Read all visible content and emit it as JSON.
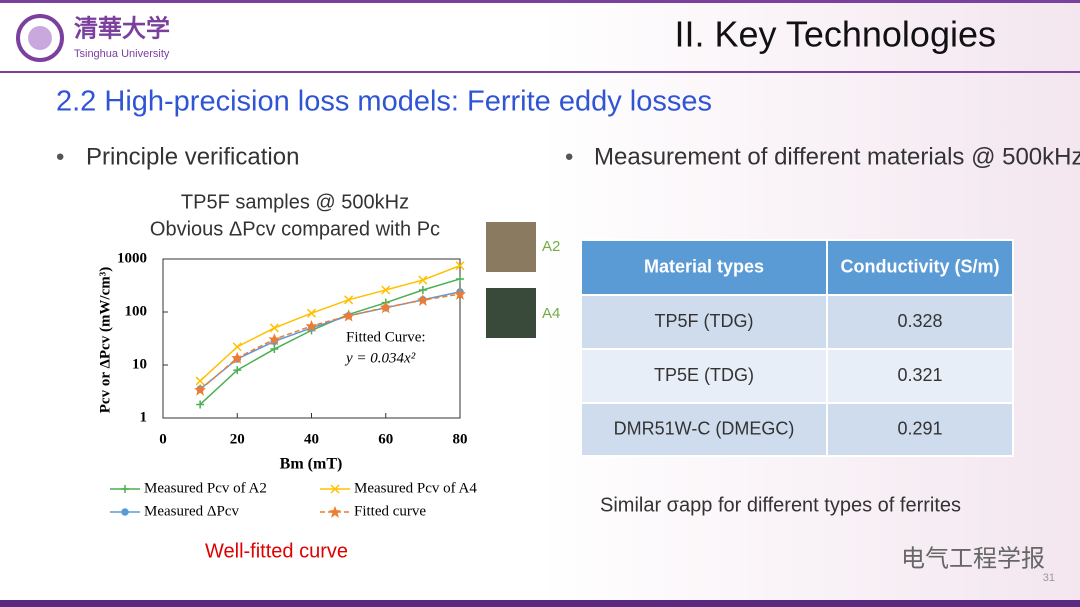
{
  "header": {
    "logo_cn": "清華大学",
    "logo_en": "Tsinghua University",
    "title": "II. Key Technologies"
  },
  "section": "2.2 High-precision loss models: Ferrite eddy losses",
  "left": {
    "bullet": "Principle verification",
    "caption": "Well-fitted curve"
  },
  "chart_data": {
    "type": "line",
    "title": [
      "TP5F samples @ 500kHz",
      "Obvious ΔPcv compared with Pc"
    ],
    "xlabel": "Bm (mT)",
    "ylabel": "Pcv or ΔPcv (mW/cm³)",
    "x": [
      10,
      20,
      30,
      40,
      50,
      60,
      70,
      80
    ],
    "series": [
      {
        "name": "Measured Pcv of A2",
        "color": "#4caf50",
        "marker": "plus",
        "values": [
          1.8,
          8,
          20,
          45,
          90,
          150,
          260,
          420
        ]
      },
      {
        "name": "Measured Pcv of A4",
        "color": "#ffc000",
        "marker": "x",
        "values": [
          5,
          22,
          50,
          95,
          170,
          260,
          400,
          750
        ]
      },
      {
        "name": "Measured ΔPcv",
        "color": "#5b9bd5",
        "marker": "circle",
        "values": [
          3.5,
          13,
          28,
          50,
          85,
          120,
          170,
          240
        ]
      },
      {
        "name": "Fitted curve",
        "color": "#ed7d31",
        "marker": "star",
        "dashed": true,
        "values": [
          3.4,
          13.6,
          30.6,
          54.4,
          85,
          122,
          167,
          218
        ]
      }
    ],
    "xlim": [
      0,
      80
    ],
    "xticks": [
      0,
      20,
      40,
      60,
      80
    ],
    "ylim": [
      1,
      1000
    ],
    "yticks": [
      1,
      10,
      100,
      1000
    ],
    "log_y": true,
    "annotation": [
      "Fitted Curve:",
      "y = 0.034x²"
    ],
    "sample_labels": [
      "A2",
      "A4"
    ]
  },
  "right": {
    "bullet": "Measurement of different materials @ 500kHz",
    "note": "Similar σapp for different types of ferrites"
  },
  "table": {
    "columns": [
      "Material types",
      "Conductivity (S/m)"
    ],
    "rows": [
      [
        "TP5F (TDG)",
        "0.328"
      ],
      [
        "TP5E (TDG)",
        "0.321"
      ],
      [
        "DMR51W-C (DMEGC)",
        "0.291"
      ]
    ]
  },
  "footer": {
    "watermark": "电气工程学报",
    "page": "31"
  }
}
